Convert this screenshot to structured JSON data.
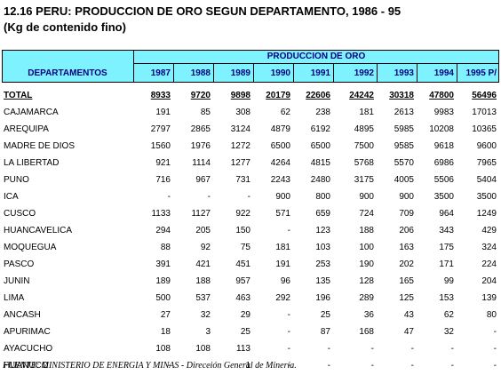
{
  "title": "12.16  PERU: PRODUCCION DE ORO SEGUN DEPARTAMENTO, 1986 - 95",
  "subtitle": "(Kg de contenido fino)",
  "table": {
    "group_header": "PRODUCCION DE ORO",
    "row_header": "DEPARTAMENTOS",
    "years": [
      "1987",
      "1988",
      "1989",
      "1990",
      "1991",
      "1992",
      "1993",
      "1994",
      "1995 P/"
    ],
    "rows": [
      {
        "name": "TOTAL",
        "values": [
          "8933",
          "9720",
          "9898",
          "20179",
          "22606",
          "24242",
          "30318",
          "47800",
          "56496"
        ]
      },
      {
        "name": "CAJAMARCA",
        "values": [
          "191",
          "85",
          "308",
          "62",
          "238",
          "181",
          "2613",
          "9983",
          "17013"
        ]
      },
      {
        "name": "AREQUIPA",
        "values": [
          "2797",
          "2865",
          "3124",
          "4879",
          "6192",
          "4895",
          "5985",
          "10208",
          "10365"
        ]
      },
      {
        "name": "MADRE DE DIOS",
        "values": [
          "1560",
          "1976",
          "1272",
          "6500",
          "6500",
          "7500",
          "9585",
          "9618",
          "9600"
        ]
      },
      {
        "name": "LA LIBERTAD",
        "values": [
          "921",
          "1114",
          "1277",
          "4264",
          "4815",
          "5768",
          "5570",
          "6986",
          "7965"
        ]
      },
      {
        "name": "PUNO",
        "values": [
          "716",
          "967",
          "731",
          "2243",
          "2480",
          "3175",
          "4005",
          "5506",
          "5404"
        ]
      },
      {
        "name": "ICA",
        "values": [
          "-",
          "-",
          "-",
          "900",
          "800",
          "900",
          "900",
          "3500",
          "3500"
        ]
      },
      {
        "name": "CUSCO",
        "values": [
          "1133",
          "1127",
          "922",
          "571",
          "659",
          "724",
          "709",
          "964",
          "1249"
        ]
      },
      {
        "name": "HUANCAVELICA",
        "values": [
          "294",
          "205",
          "150",
          "-",
          "123",
          "188",
          "206",
          "343",
          "429"
        ]
      },
      {
        "name": "MOQUEGUA",
        "values": [
          "88",
          "92",
          "75",
          "181",
          "103",
          "100",
          "163",
          "175",
          "324"
        ]
      },
      {
        "name": "PASCO",
        "values": [
          "391",
          "421",
          "451",
          "191",
          "253",
          "190",
          "202",
          "171",
          "224"
        ]
      },
      {
        "name": "JUNIN",
        "values": [
          "189",
          "188",
          "957",
          "96",
          "135",
          "128",
          "165",
          "99",
          "204"
        ]
      },
      {
        "name": "LIMA",
        "values": [
          "500",
          "537",
          "463",
          "292",
          "196",
          "289",
          "125",
          "153",
          "139"
        ]
      },
      {
        "name": "ANCASH",
        "values": [
          "27",
          "32",
          "29",
          "-",
          "25",
          "36",
          "43",
          "62",
          "80"
        ]
      },
      {
        "name": "APURIMAC",
        "values": [
          "18",
          "3",
          "25",
          "-",
          "87",
          "168",
          "47",
          "32",
          "-"
        ]
      },
      {
        "name": "AYACUCHO",
        "values": [
          "108",
          "108",
          "113",
          "-",
          "-",
          "-",
          "-",
          "-",
          "-"
        ]
      },
      {
        "name": "HUANUCO",
        "values": [
          "-",
          "-",
          "1",
          "-",
          "-",
          "-",
          "-",
          "-",
          "-"
        ]
      }
    ]
  },
  "footer": "FUENTE: MINISTERIO DE ENERGIA Y MINAS - Dirección General de Minería."
}
